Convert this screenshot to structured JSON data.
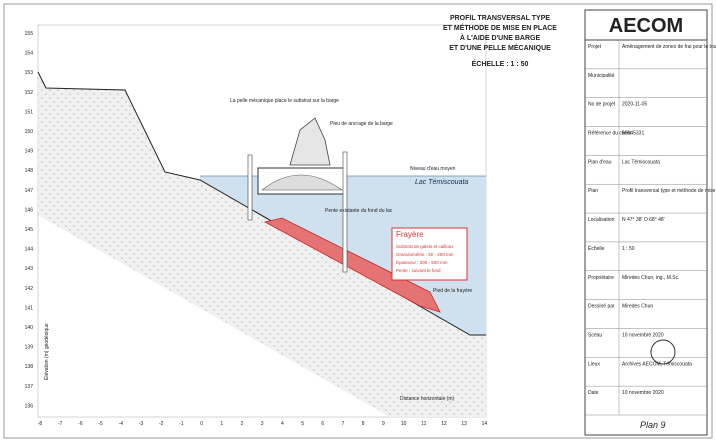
{
  "title": {
    "lines": [
      "PROFIL TRANSVERSAL TYPE",
      "ET MÉTHODE DE MISE EN PLACE",
      "À L'AIDE D'UNE BARGE",
      "ET D'UNE PELLE MÉCANIQUE"
    ],
    "scale": "ÉCHELLE : 1 : 50"
  },
  "logo": "AECOM",
  "info": [
    {
      "label": "Projet",
      "value": "Aménagement de zones de frai pour le touladi au lac Témiscouata"
    },
    {
      "label": "Municipalité",
      "value": ""
    },
    {
      "label": "No de projet",
      "value": "2020-11-05"
    },
    {
      "label": "Référence du client",
      "value": "60645331"
    },
    {
      "label": "Plan d'eau",
      "value": "Lac Témiscouata"
    },
    {
      "label": "Plan",
      "value": "Profil transversal type et méthode de mise en place à l'aide d'une barge et d'une pelle mécanique"
    },
    {
      "label": "Localisation",
      "value": "N 47° 38' O 68° 48'"
    },
    {
      "label": "Échelle",
      "value": "1 : 50"
    },
    {
      "label": "Propriétaire",
      "value": "Miredes Chun, ing., M.Sc."
    },
    {
      "label": "Dessiné par",
      "value": "Miredes Chun"
    },
    {
      "label": "Sceau",
      "value": "10 novembre 2020"
    },
    {
      "label": "Lieux",
      "value": "Archives AECOM, Témiscouata"
    },
    {
      "label": "Date",
      "value": "10 novembre 2020"
    }
  ],
  "plan_number": "Plan 9",
  "axes": {
    "y_labels": [
      "155",
      "154",
      "153",
      "152",
      "151",
      "150",
      "149",
      "148",
      "147",
      "146",
      "145",
      "144",
      "143",
      "142",
      "141",
      "140",
      "139",
      "138",
      "137",
      "136"
    ],
    "x_labels": [
      "-8",
      "-7",
      "-6",
      "-5",
      "-4",
      "-3",
      "-2",
      "-1",
      "0",
      "1",
      "2",
      "3",
      "4",
      "5",
      "6",
      "7",
      "8",
      "9",
      "10",
      "11",
      "12",
      "13",
      "14"
    ],
    "y_title": "Élévation (m) géodésique"
  },
  "annotations": {
    "excavator": "La pelle mécanique place le substrat sur la barge",
    "pole": "Pieu de ancrage de la barge",
    "water_level": "Niveau d'eau moyen",
    "lake": "Lac Témiscouata",
    "slope": "Pente existante du fond du lac",
    "toe": "Pied de la frayère",
    "distance": "Distance horizontale (m)"
  },
  "legend": {
    "title": "Frayère",
    "lines": [
      "Substrat de galets et cailloux",
      "Granulométrie : 50 - 200 mm",
      "Épaisseur : 300 - 500 mm",
      "Pente : suivant le fond"
    ]
  }
}
